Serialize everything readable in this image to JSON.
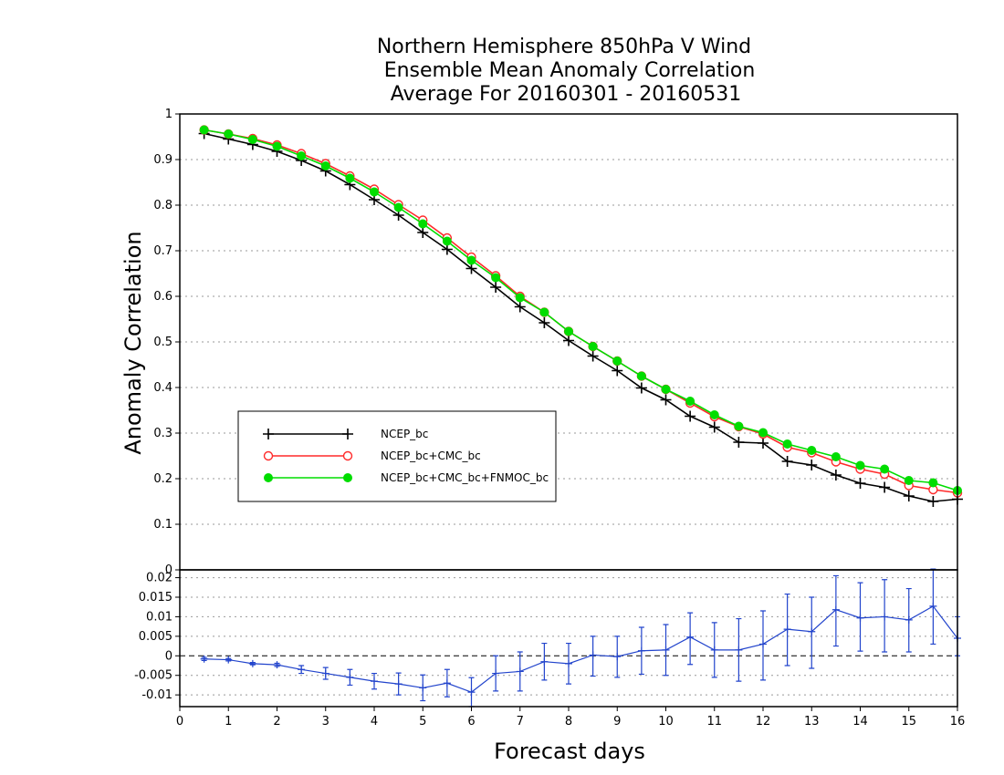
{
  "chart_data": {
    "type": "line",
    "title_lines": [
      "Northern Hemisphere 850hPa V Wind",
      "Ensemble Mean Anomaly Correlation",
      "Average For 20160301 - 20160531"
    ],
    "xlabel": "Forecast days",
    "ylabel": "Anomaly Correlation",
    "xlim": [
      0,
      16
    ],
    "x_ticks": [
      "0",
      "1",
      "2",
      "3",
      "4",
      "5",
      "6",
      "7",
      "8",
      "9",
      "10",
      "11",
      "12",
      "13",
      "14",
      "15",
      "16"
    ],
    "x": [
      0.5,
      1,
      1.5,
      2,
      2.5,
      3,
      3.5,
      4,
      4.5,
      5,
      5.5,
      6,
      6.5,
      7,
      7.5,
      8,
      8.5,
      9,
      9.5,
      10,
      10.5,
      11,
      11.5,
      12,
      12.5,
      13,
      13.5,
      14,
      14.5,
      15,
      15.5,
      16
    ],
    "main_panel": {
      "ylim": [
        0,
        1
      ],
      "y_ticks": [
        "0",
        "0.1",
        "0.2",
        "0.3",
        "0.4",
        "0.5",
        "0.6",
        "0.7",
        "0.8",
        "0.9",
        "1"
      ],
      "grid": "horizontal-dotted",
      "legend_position": "lower-left",
      "series": [
        {
          "name": "NCEP_bc",
          "color": "#000000",
          "marker": "plus",
          "values": [
            0.957,
            0.945,
            0.933,
            0.918,
            0.898,
            0.875,
            0.845,
            0.812,
            0.778,
            0.74,
            0.703,
            0.661,
            0.62,
            0.577,
            0.542,
            0.503,
            0.469,
            0.437,
            0.399,
            0.373,
            0.337,
            0.313,
            0.28,
            0.278,
            0.238,
            0.23,
            0.208,
            0.19,
            0.181,
            0.162,
            0.15,
            0.155
          ]
        },
        {
          "name": "NCEP_bc+CMC_bc",
          "color": "#ff2a2a",
          "marker": "open-circle",
          "values": [
            0.965,
            0.956,
            0.946,
            0.932,
            0.913,
            0.891,
            0.864,
            0.835,
            0.801,
            0.767,
            0.728,
            0.686,
            0.645,
            0.6,
            0.565,
            0.523,
            0.49,
            0.458,
            0.425,
            0.396,
            0.366,
            0.336,
            0.314,
            0.298,
            0.269,
            0.257,
            0.237,
            0.221,
            0.21,
            0.185,
            0.176,
            0.169
          ]
        },
        {
          "name": "NCEP_bc+CMC_bc+FNMOC_bc",
          "color": "#00dd00",
          "marker": "filled-circle",
          "values": [
            0.965,
            0.956,
            0.944,
            0.929,
            0.908,
            0.886,
            0.859,
            0.829,
            0.795,
            0.759,
            0.721,
            0.679,
            0.641,
            0.597,
            0.565,
            0.523,
            0.49,
            0.458,
            0.425,
            0.396,
            0.37,
            0.34,
            0.315,
            0.301,
            0.276,
            0.262,
            0.248,
            0.229,
            0.221,
            0.196,
            0.191,
            0.174
          ]
        }
      ]
    },
    "difference_panel": {
      "ylim": [
        -0.013,
        0.022
      ],
      "y_ticks": [
        "-0.01",
        "-0.005",
        "0",
        "0.005",
        "0.01",
        "0.015",
        "0.02"
      ],
      "y_tick_values": [
        -0.01,
        -0.005,
        0,
        0.005,
        0.01,
        0.015,
        0.02
      ],
      "grid": "horizontal-dotted",
      "series": [
        {
          "name": "difference",
          "color": "#2244cc",
          "marker": "plus",
          "values": [
            -0.0008,
            -0.001,
            -0.002,
            -0.0023,
            -0.0035,
            -0.0045,
            -0.0055,
            -0.0065,
            -0.0072,
            -0.0082,
            -0.007,
            -0.0093,
            -0.0045,
            -0.004,
            -0.0015,
            -0.002,
            0.0002,
            -0.0002,
            0.0013,
            0.0015,
            0.0048,
            0.0015,
            0.0015,
            0.003,
            0.0068,
            0.0062,
            0.0118,
            0.0097,
            0.01,
            0.0092,
            0.0127,
            0.0045
          ],
          "error_low": [
            -0.0012,
            -0.0013,
            -0.0023,
            -0.0027,
            -0.0045,
            -0.006,
            -0.0075,
            -0.0085,
            -0.01,
            -0.0115,
            -0.0105,
            -0.013,
            -0.009,
            -0.009,
            -0.0062,
            -0.0072,
            -0.0052,
            -0.0055,
            -0.0047,
            -0.005,
            -0.0022,
            -0.0055,
            -0.0065,
            -0.0062,
            -0.0025,
            -0.0032,
            0.0025,
            0.0012,
            0.001,
            0.001,
            0.003,
            0.0
          ],
          "error_high": [
            -0.0004,
            -0.0007,
            -0.0017,
            -0.0019,
            -0.0025,
            -0.003,
            -0.0035,
            -0.0045,
            -0.0044,
            -0.0049,
            -0.0035,
            -0.0056,
            0.0,
            0.001,
            0.0032,
            0.0032,
            0.005,
            0.005,
            0.0073,
            0.008,
            0.011,
            0.0085,
            0.0095,
            0.0115,
            0.0158,
            0.015,
            0.0205,
            0.0187,
            0.0195,
            0.0172,
            0.0222,
            0.01
          ]
        }
      ]
    }
  }
}
